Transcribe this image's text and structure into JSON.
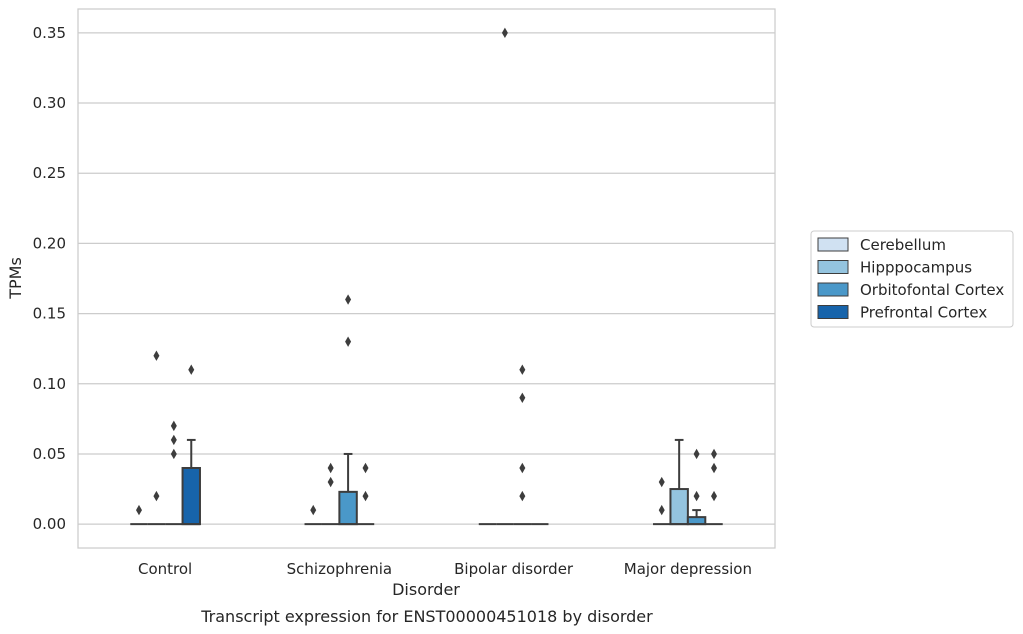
{
  "caption": "Transcript expression for ENST00000451018 by disorder",
  "chart_data": {
    "type": "box",
    "xlabel": "Disorder",
    "ylabel": "TPMs",
    "ylim": [
      -0.017,
      0.367
    ],
    "yticks": [
      0.0,
      0.05,
      0.1,
      0.15,
      0.2,
      0.25,
      0.3,
      0.35
    ],
    "ytick_labels": [
      "0.00",
      "0.05",
      "0.10",
      "0.15",
      "0.20",
      "0.25",
      "0.30",
      "0.35"
    ],
    "categories": [
      "Control",
      "Schizophrenia",
      "Bipolar disorder",
      "Major depression"
    ],
    "grid": "horizontal",
    "legend_position": "right",
    "series": [
      {
        "name": "Cerebellum",
        "color": "#d0e1f2",
        "boxes": [
          {
            "q1": 0,
            "median": 0,
            "q3": 0,
            "whisker_low": 0,
            "whisker_high": 0,
            "outliers": [
              0.01
            ]
          },
          {
            "q1": 0,
            "median": 0,
            "q3": 0,
            "whisker_low": 0,
            "whisker_high": 0,
            "outliers": [
              0.01
            ]
          },
          {
            "q1": 0,
            "median": 0,
            "q3": 0,
            "whisker_low": 0,
            "whisker_high": 0,
            "outliers": []
          },
          {
            "q1": 0,
            "median": 0,
            "q3": 0,
            "whisker_low": 0,
            "whisker_high": 0,
            "outliers": [
              0.01,
              0.03
            ]
          }
        ]
      },
      {
        "name": "Hipppocampus",
        "color": "#94c4df",
        "boxes": [
          {
            "q1": 0,
            "median": 0,
            "q3": 0,
            "whisker_low": 0,
            "whisker_high": 0,
            "outliers": [
              0.02,
              0.12
            ]
          },
          {
            "q1": 0,
            "median": 0,
            "q3": 0,
            "whisker_low": 0,
            "whisker_high": 0,
            "outliers": [
              0.03,
              0.04
            ]
          },
          {
            "q1": 0,
            "median": 0,
            "q3": 0,
            "whisker_low": 0,
            "whisker_high": 0,
            "outliers": [
              0.35
            ]
          },
          {
            "q1": 0,
            "median": 0,
            "q3": 0.025,
            "whisker_low": 0,
            "whisker_high": 0.06,
            "outliers": []
          }
        ]
      },
      {
        "name": "Orbitofontal Cortex",
        "color": "#4a98c9",
        "boxes": [
          {
            "q1": 0,
            "median": 0,
            "q3": 0,
            "whisker_low": 0,
            "whisker_high": 0,
            "outliers": [
              0.05,
              0.06,
              0.07
            ]
          },
          {
            "q1": 0,
            "median": 0,
            "q3": 0.023,
            "whisker_low": 0,
            "whisker_high": 0.05,
            "outliers": [
              0.13,
              0.16
            ]
          },
          {
            "q1": 0,
            "median": 0,
            "q3": 0,
            "whisker_low": 0,
            "whisker_high": 0,
            "outliers": [
              0.02,
              0.04,
              0.09,
              0.11
            ]
          },
          {
            "q1": 0,
            "median": 0,
            "q3": 0.005,
            "whisker_low": 0,
            "whisker_high": 0.01,
            "outliers": [
              0.02,
              0.05
            ]
          }
        ]
      },
      {
        "name": "Prefrontal Cortex",
        "color": "#1764ab",
        "boxes": [
          {
            "q1": 0,
            "median": 0,
            "q3": 0.04,
            "whisker_low": 0,
            "whisker_high": 0.06,
            "outliers": [
              0.11
            ]
          },
          {
            "q1": 0,
            "median": 0,
            "q3": 0,
            "whisker_low": 0,
            "whisker_high": 0,
            "outliers": [
              0.02,
              0.04
            ]
          },
          {
            "q1": 0,
            "median": 0,
            "q3": 0,
            "whisker_low": 0,
            "whisker_high": 0,
            "outliers": []
          },
          {
            "q1": 0,
            "median": 0,
            "q3": 0,
            "whisker_low": 0,
            "whisker_high": 0,
            "outliers": [
              0.02,
              0.04,
              0.05
            ]
          }
        ]
      }
    ]
  }
}
